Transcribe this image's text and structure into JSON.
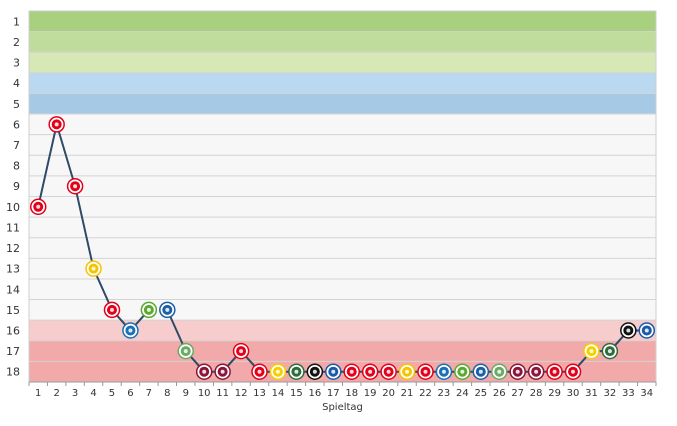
{
  "chart_data": {
    "type": "line",
    "title": "",
    "xlabel": "Spieltag",
    "ylabel": "",
    "x_ticks": [
      "1",
      "2",
      "3",
      "4",
      "5",
      "6",
      "7",
      "8",
      "9",
      "10",
      "11",
      "12",
      "13",
      "14",
      "15",
      "16",
      "17",
      "18",
      "19",
      "20",
      "21",
      "22",
      "23",
      "24",
      "25",
      "26",
      "27",
      "28",
      "29",
      "30",
      "31",
      "32",
      "33",
      "34"
    ],
    "y_ticks": [
      "1",
      "2",
      "3",
      "4",
      "5",
      "6",
      "7",
      "8",
      "9",
      "10",
      "11",
      "12",
      "13",
      "14",
      "15",
      "16",
      "17",
      "18"
    ],
    "ylim": [
      1,
      18
    ],
    "y_inverted": true,
    "grid": true,
    "legend": "none",
    "zones": [
      {
        "from": 1,
        "to": 1,
        "color": "#a9d07e"
      },
      {
        "from": 2,
        "to": 2,
        "color": "#c0dc9c"
      },
      {
        "from": 3,
        "to": 3,
        "color": "#d6e8b6"
      },
      {
        "from": 4,
        "to": 4,
        "color": "#bad8ef"
      },
      {
        "from": 5,
        "to": 5,
        "color": "#a6c9e6"
      },
      {
        "from": 16,
        "to": 16,
        "color": "#f6cccc"
      },
      {
        "from": 17,
        "to": 18,
        "color": "#f2a9a9"
      }
    ],
    "series": [
      {
        "color": "#2f4a66",
        "segments": [
          {
            "x": [
              1,
              2,
              3,
              4,
              5,
              6,
              7
            ],
            "y": [
              10,
              6,
              9,
              13,
              15,
              16,
              15
            ]
          },
          {
            "x": [
              8,
              9,
              10,
              11,
              12,
              13,
              14,
              15,
              16,
              17,
              18,
              19,
              20,
              21,
              22,
              23,
              24,
              25,
              26,
              27,
              28,
              29,
              30,
              31,
              32,
              33,
              34
            ],
            "y": [
              15,
              17,
              18,
              18,
              17,
              18,
              18,
              18,
              18,
              18,
              18,
              18,
              18,
              18,
              18,
              18,
              18,
              18,
              18,
              18,
              18,
              18,
              18,
              17,
              17,
              16,
              16
            ]
          }
        ]
      }
    ],
    "opponent_marker_colors": [
      "#e2001a",
      "#e2001a",
      "#e2001a",
      "#f5c400",
      "#e2001a",
      "#1b6fb4",
      "#5aa830",
      "#1c5fa6",
      "#6aaa64",
      "#8a1538",
      "#8a1538",
      "#e2001a",
      "#e2001a",
      "#f4d000",
      "#2e6b3a",
      "#111111",
      "#1a5aa8",
      "#e2001a",
      "#e2001a",
      "#e2001a",
      "#f5c400",
      "#e2001a",
      "#1b6fb4",
      "#5aa830",
      "#1c5fa6",
      "#6aaa64",
      "#8a1538",
      "#8a1538",
      "#e2001a",
      "#e2001a",
      "#f4d000",
      "#2e6b3a",
      "#111111",
      "#1a5aa8"
    ]
  }
}
